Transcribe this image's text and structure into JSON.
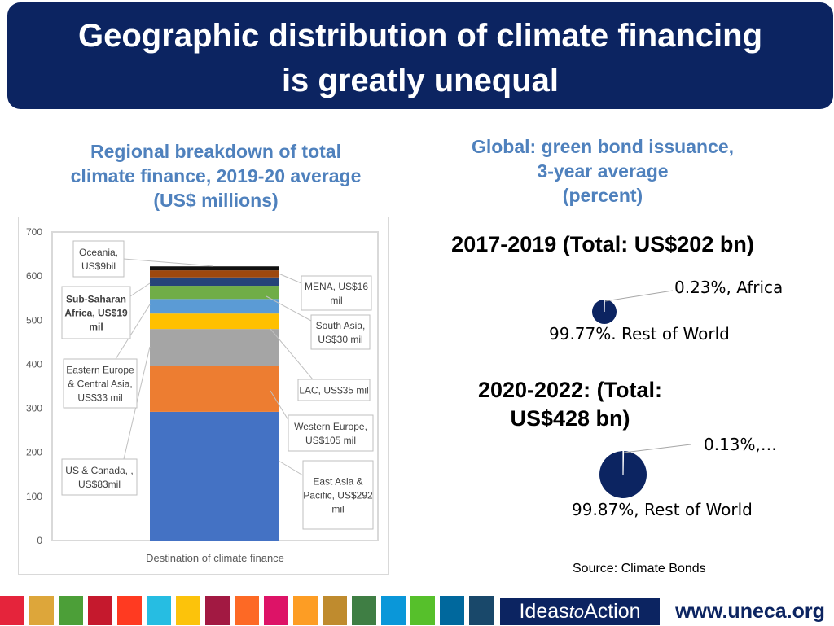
{
  "title": {
    "line1": "Geographic distribution of climate financing",
    "line2": "is greatly unequal"
  },
  "left_panel": {
    "heading": [
      "Regional breakdown of total",
      "climate finance, 2019-20 average",
      "(US$ millions)"
    ]
  },
  "right_panel": {
    "heading": [
      "Global: green bond issuance,",
      "3-year average",
      "(percent)"
    ]
  },
  "chart_data": [
    {
      "type": "bar",
      "stacked": true,
      "categories": [
        ""
      ],
      "xlabel": "Destination of climate finance",
      "ylim": [
        0,
        700
      ],
      "yticks": [
        0,
        100,
        200,
        300,
        400,
        500,
        600,
        700
      ],
      "grid": false,
      "series": [
        {
          "name": "East Asia & Pacific",
          "label": "East Asia & Pacific, US$292 mil",
          "values": [
            292
          ],
          "color": "#4472c4"
        },
        {
          "name": "Western Europe",
          "label": "Western Europe, US$105 mil",
          "values": [
            105
          ],
          "color": "#ed7d31"
        },
        {
          "name": "US & Canada",
          "label": "US & Canada, , US$83mil",
          "values": [
            83
          ],
          "color": "#a5a5a5"
        },
        {
          "name": "LAC",
          "label": "LAC, US$35 mil",
          "values": [
            35
          ],
          "color": "#ffc000"
        },
        {
          "name": "Eastern Europe & Central Asia",
          "label": "Eastern Europe & Central Asia, US$33 mil",
          "values": [
            33
          ],
          "color": "#5b9bd5"
        },
        {
          "name": "South Asia",
          "label": "South Asia, US$30 mil",
          "values": [
            30
          ],
          "color": "#70ad47"
        },
        {
          "name": "Sub-Saharan Africa",
          "label": "Sub-Saharan Africa, US$19 mil",
          "values": [
            19
          ],
          "color": "#264478"
        },
        {
          "name": "MENA",
          "label": "MENA, US$16 mil",
          "values": [
            16
          ],
          "color": "#9e480e"
        },
        {
          "name": "Oceania",
          "label": "Oceania, US$9bil",
          "values": [
            9
          ],
          "color": "#111111"
        }
      ]
    },
    {
      "type": "pie",
      "title": "2017-2019 (Total: US$202 bn)",
      "slices": [
        {
          "name": "Africa",
          "value": 0.23,
          "label": "0.23%, Africa"
        },
        {
          "name": "Rest of World",
          "value": 99.77,
          "label": "99.77%. Rest of World"
        }
      ]
    },
    {
      "type": "pie",
      "title": "2020-2022: (Total: US$428 bn)",
      "slices": [
        {
          "name": "",
          "value": 0.13,
          "label": "0.13%,…"
        },
        {
          "name": "Rest of World",
          "value": 99.87,
          "label": "99.87%, Rest of World"
        }
      ]
    }
  ],
  "pie_color": "#0c2461",
  "pie_small_color": "#ffffff",
  "source": "Source: Climate Bonds",
  "footer": {
    "ideas_prefix": "Ideas",
    "ideas_to": "to",
    "ideas_suffix": "Action",
    "website": "www.uneca.org",
    "sdg_colors": [
      "#e5243b",
      "#dda63a",
      "#4c9f38",
      "#c5192d",
      "#ff3a21",
      "#26bde2",
      "#fcc30b",
      "#a21942",
      "#fd6925",
      "#dd1367",
      "#fd9d24",
      "#bf8b2e",
      "#3f7e44",
      "#0a97d9",
      "#56c02b",
      "#00689d",
      "#19486a"
    ]
  }
}
